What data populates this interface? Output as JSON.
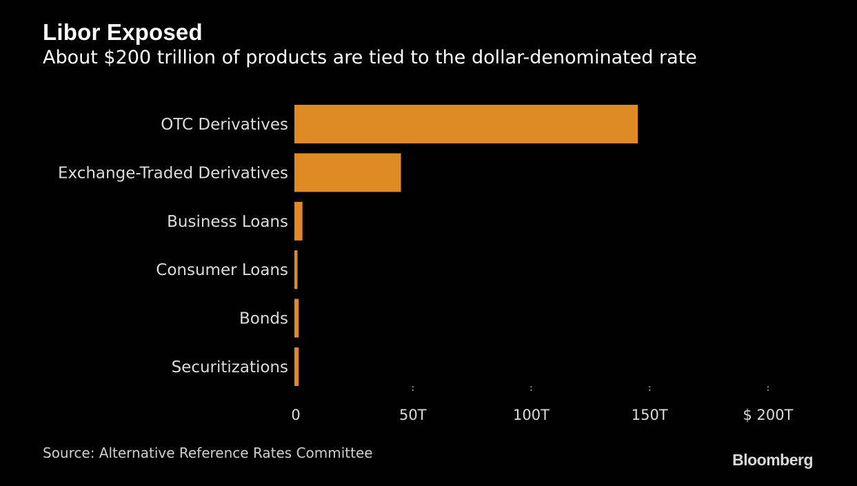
{
  "chart_data": {
    "type": "bar",
    "orientation": "horizontal",
    "title": "Libor Exposed",
    "subtitle": "About $200 trillion of products are tied to the dollar-denominated rate",
    "categories": [
      "OTC Derivatives",
      "Exchange-Traded Derivatives",
      "Business Loans",
      "Consumer Loans",
      "Bonds",
      "Securitizations"
    ],
    "values": [
      145,
      45,
      3.4,
      1.3,
      1.8,
      1.8
    ],
    "unit": "trillion USD",
    "xlim": [
      0,
      200
    ],
    "xticks": [
      0,
      50,
      100,
      150,
      200
    ],
    "xtick_labels": [
      "0",
      "50T",
      "100T",
      "150T",
      "$ 200T"
    ],
    "xlabel": "",
    "ylabel": "",
    "grid": false,
    "bar_color": "#e08a25"
  },
  "footer": {
    "source": "Source: Alternative Reference Rates Committee",
    "brand": "Bloomberg"
  },
  "colors": {
    "background": "#000000",
    "text": "#ffffff",
    "bar": "#e08a25"
  }
}
